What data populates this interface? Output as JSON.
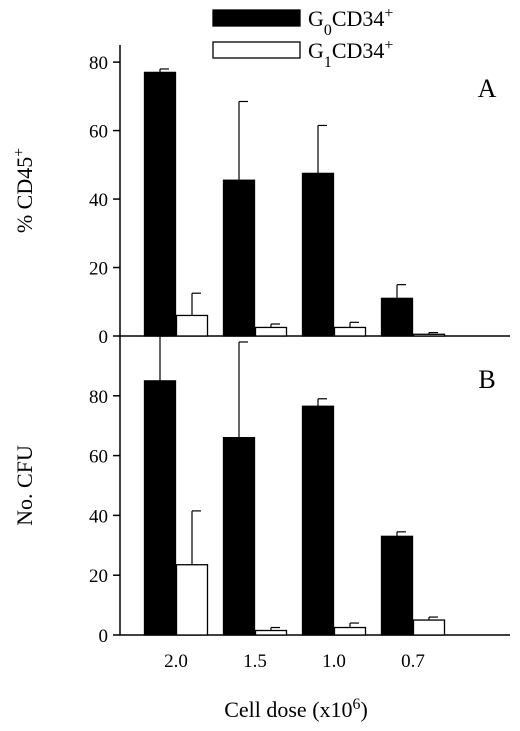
{
  "chart_data": {
    "type": "bar",
    "categories": [
      "2.0",
      "1.5",
      "1.0",
      "0.7"
    ],
    "xlabel": {
      "text": "Cell dose (x10",
      "sup": "6",
      "close": ")"
    },
    "legend": {
      "placement": "top-center",
      "entries": [
        {
          "base": "G",
          "sub": "0",
          "mid": "CD34",
          "sup": "+",
          "fill": "#000000"
        },
        {
          "base": "G",
          "sub": "1",
          "mid": "CD34",
          "sup": "+",
          "fill": "#ffffff"
        }
      ]
    },
    "panels": [
      {
        "label": "A",
        "ylabel": {
          "text": "% CD45",
          "sup": "+"
        },
        "ylim": [
          0,
          85
        ],
        "yticks": [
          0,
          20,
          40,
          60,
          80
        ],
        "series": [
          {
            "values": [
              77,
              45.5,
              47.5,
              11
            ],
            "errors": [
              1,
              23,
              14,
              4
            ]
          },
          {
            "values": [
              6,
              2.5,
              2.5,
              0.5
            ],
            "errors": [
              6.5,
              1,
              1.5,
              0.5
            ]
          }
        ]
      },
      {
        "label": "B",
        "ylabel": {
          "text": "No. CFU"
        },
        "ylim": [
          0,
          100
        ],
        "yticks": [
          0,
          20,
          40,
          60,
          80
        ],
        "series": [
          {
            "values": [
              85,
              66,
              76.5,
              33
            ],
            "errors": [
              15,
              32,
              2.5,
              1.5
            ]
          },
          {
            "values": [
              23.5,
              1.5,
              2.5,
              5
            ],
            "errors": [
              18,
              1,
              1.5,
              1
            ]
          }
        ]
      }
    ]
  }
}
